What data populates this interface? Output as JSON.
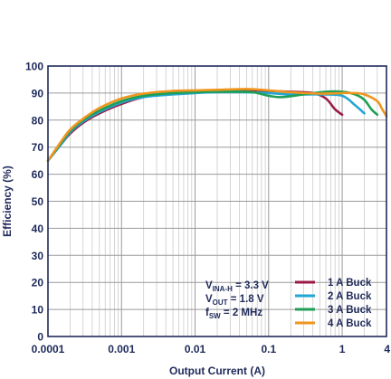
{
  "chart_data": {
    "type": "line",
    "xlabel": "Output Current (A)",
    "ylabel": "Efficiency (%)",
    "x_scale": "log",
    "xlim": [
      0.0001,
      4
    ],
    "ylim": [
      0,
      100
    ],
    "grid": true,
    "legend_position": "bottom-right",
    "x_ticks": [
      {
        "value": 0.0001,
        "label": "0.0001"
      },
      {
        "value": 0.001,
        "label": "0.001"
      },
      {
        "value": 0.01,
        "label": "0.01"
      },
      {
        "value": 0.1,
        "label": "0.1"
      },
      {
        "value": 1,
        "label": "1"
      },
      {
        "value": 4,
        "label": "4"
      }
    ],
    "y_ticks": [
      0,
      10,
      20,
      30,
      40,
      50,
      60,
      70,
      80,
      90,
      100
    ],
    "annotation": [
      {
        "main": "V",
        "sub": "INA-H",
        "rest": " = 3.3 V"
      },
      {
        "main": "V",
        "sub": "OUT",
        "rest": " = 1.8 V"
      },
      {
        "main": "f",
        "sub": "SW",
        "rest": " = 2 MHz"
      }
    ],
    "series": [
      {
        "name": "1 A Buck",
        "color": "#9b1b45",
        "points": [
          [
            0.0001,
            65
          ],
          [
            0.00015,
            71
          ],
          [
            0.0002,
            75
          ],
          [
            0.0003,
            79
          ],
          [
            0.0005,
            82.5
          ],
          [
            0.001,
            86
          ],
          [
            0.002,
            88.5
          ],
          [
            0.005,
            90
          ],
          [
            0.01,
            90.5
          ],
          [
            0.02,
            90.8
          ],
          [
            0.05,
            91
          ],
          [
            0.1,
            90.8
          ],
          [
            0.2,
            90.5
          ],
          [
            0.4,
            90
          ],
          [
            0.6,
            88
          ],
          [
            0.8,
            84
          ],
          [
            1.0,
            82
          ]
        ]
      },
      {
        "name": "2 A Buck",
        "color": "#22a7d4",
        "points": [
          [
            0.0001,
            65
          ],
          [
            0.00015,
            71
          ],
          [
            0.0002,
            75.5
          ],
          [
            0.0003,
            79.5
          ],
          [
            0.0005,
            83
          ],
          [
            0.001,
            86.5
          ],
          [
            0.002,
            88.5
          ],
          [
            0.005,
            89.5
          ],
          [
            0.01,
            90
          ],
          [
            0.02,
            90.3
          ],
          [
            0.05,
            90.3
          ],
          [
            0.1,
            90
          ],
          [
            0.2,
            89.5
          ],
          [
            0.5,
            89.5
          ],
          [
            1.0,
            89
          ],
          [
            1.5,
            85.5
          ],
          [
            2.0,
            82.5
          ]
        ]
      },
      {
        "name": "3 A Buck",
        "color": "#1f9f56",
        "points": [
          [
            0.0001,
            65
          ],
          [
            0.00015,
            71.5
          ],
          [
            0.0002,
            76
          ],
          [
            0.0003,
            80
          ],
          [
            0.0005,
            83.5
          ],
          [
            0.001,
            87
          ],
          [
            0.002,
            89
          ],
          [
            0.005,
            90
          ],
          [
            0.01,
            90.3
          ],
          [
            0.02,
            90.5
          ],
          [
            0.05,
            90.5
          ],
          [
            0.07,
            90
          ],
          [
            0.1,
            89
          ],
          [
            0.15,
            88.5
          ],
          [
            0.3,
            89.5
          ],
          [
            0.6,
            90.5
          ],
          [
            1.0,
            90.5
          ],
          [
            1.5,
            89.5
          ],
          [
            2.0,
            87.5
          ],
          [
            2.5,
            84
          ],
          [
            3.0,
            82
          ]
        ]
      },
      {
        "name": "4 A Buck",
        "color": "#f0961e",
        "points": [
          [
            0.0001,
            65
          ],
          [
            0.00015,
            72
          ],
          [
            0.0002,
            76.5
          ],
          [
            0.0003,
            80.5
          ],
          [
            0.0005,
            84.5
          ],
          [
            0.001,
            88
          ],
          [
            0.002,
            89.8
          ],
          [
            0.005,
            90.8
          ],
          [
            0.01,
            91
          ],
          [
            0.02,
            91.2
          ],
          [
            0.05,
            91.5
          ],
          [
            0.1,
            91
          ],
          [
            0.2,
            90.3
          ],
          [
            0.5,
            89.8
          ],
          [
            1.0,
            90
          ],
          [
            1.5,
            90
          ],
          [
            2.0,
            89.5
          ],
          [
            3.0,
            87
          ],
          [
            3.5,
            84
          ],
          [
            4.0,
            81.5
          ]
        ]
      }
    ]
  }
}
